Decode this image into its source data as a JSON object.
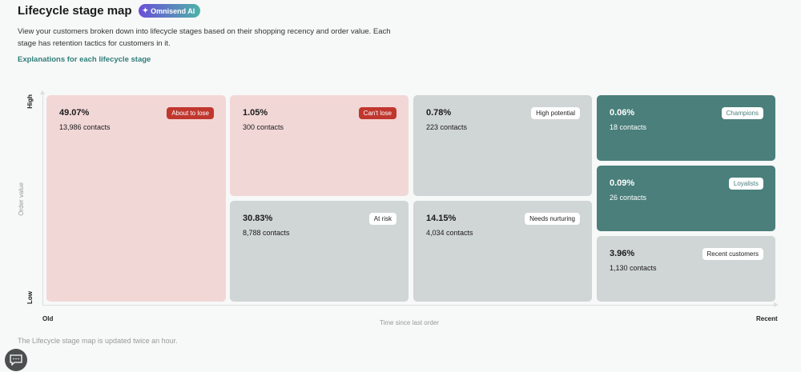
{
  "header": {
    "title": "Lifecycle stage map",
    "ai_badge": "Omnisend AI",
    "description": "View your customers broken down into lifecycle stages based on their shopping recency and order value. Each stage has retention tactics for customers in it.",
    "link": "Explanations for each lifecycle stage"
  },
  "axes": {
    "y_label": "Order value",
    "y_high": "High",
    "y_low": "Low",
    "x_label": "Time since last order",
    "x_old": "Old",
    "x_recent": "Recent"
  },
  "stages": [
    {
      "name": "About to lose",
      "percent": "49.07%",
      "contacts": "13,986 contacts"
    },
    {
      "name": "Can't lose",
      "percent": "1.05%",
      "contacts": "300 contacts"
    },
    {
      "name": "At risk",
      "percent": "30.83%",
      "contacts": "8,788 contacts"
    },
    {
      "name": "High potential",
      "percent": "0.78%",
      "contacts": "223 contacts"
    },
    {
      "name": "Needs nurturing",
      "percent": "14.15%",
      "contacts": "4,034 contacts"
    },
    {
      "name": "Champions",
      "percent": "0.06%",
      "contacts": "18 contacts"
    },
    {
      "name": "Loyalists",
      "percent": "0.09%",
      "contacts": "26 contacts"
    },
    {
      "name": "Recent customers",
      "percent": "3.96%",
      "contacts": "1,130 contacts"
    }
  ],
  "colors": {
    "pink": "#f2d7d7",
    "gray": "#d0d5d5",
    "teal": "#4a7f7b",
    "red_badge": "#c0372e"
  },
  "footer": {
    "note": "The Lifecycle stage map is updated twice an hour."
  }
}
